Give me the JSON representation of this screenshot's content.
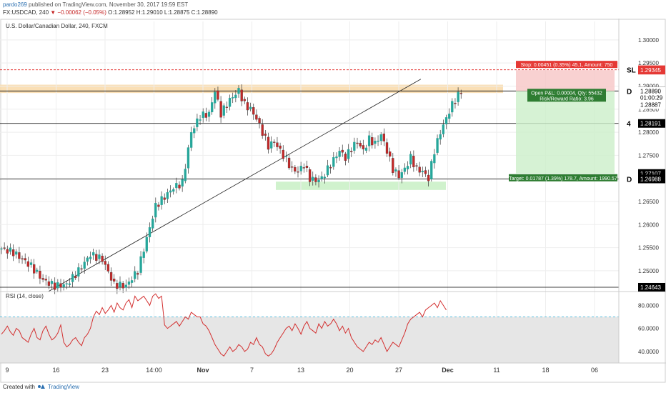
{
  "header": {
    "author": "pardo269",
    "published": "published on TradingView.com, November 30, 2017 19:59 EST",
    "symbol": "FX:USDCAD, 240",
    "change": "▼ −0.00062 (−0.05%)",
    "ohlc": "O:1.28952 H:1.29010 L:1.28875 C:1.28890"
  },
  "footer": {
    "created_with": "Created with",
    "brand": "TradingView"
  },
  "chart_data": [
    {
      "type": "candlestick",
      "title": "U.S. Dollar/Canadian Dollar, 240, FXCM",
      "ylim": [
        1.2455,
        1.304
      ],
      "y_ticks": [
        "1.30000",
        "1.29500",
        "1.29000",
        "1.28500",
        "1.28000",
        "1.27500",
        "1.27000",
        "1.26500",
        "1.26000",
        "1.25500",
        "1.25000"
      ],
      "x_ticks": [
        "9",
        "16",
        "23",
        "14:00",
        "Nov",
        "7",
        "13",
        "20",
        "27",
        "Dec",
        "11",
        "18",
        "06"
      ],
      "price_path": [
        [
          0,
          1.2548
        ],
        [
          4,
          1.254
        ],
        [
          10,
          1.251
        ],
        [
          14,
          1.248
        ],
        [
          18,
          1.2467
        ],
        [
          22,
          1.247
        ],
        [
          26,
          1.25
        ],
        [
          30,
          1.2535
        ],
        [
          34,
          1.2525
        ],
        [
          38,
          1.247
        ],
        [
          42,
          1.2467
        ],
        [
          46,
          1.25
        ],
        [
          49,
          1.257
        ],
        [
          52,
          1.264
        ],
        [
          55,
          1.266
        ],
        [
          58,
          1.268
        ],
        [
          61,
          1.269
        ],
        [
          64,
          1.28
        ],
        [
          67,
          1.2835
        ],
        [
          70,
          1.284
        ],
        [
          72,
          1.289
        ],
        [
          74,
          1.284
        ],
        [
          77,
          1.287
        ],
        [
          80,
          1.289
        ],
        [
          82,
          1.286
        ],
        [
          84,
          1.285
        ],
        [
          86,
          1.283
        ],
        [
          88,
          1.28
        ],
        [
          90,
          1.277
        ],
        [
          92,
          1.278
        ],
        [
          94,
          1.276
        ],
        [
          96,
          1.274
        ],
        [
          98,
          1.272
        ],
        [
          100,
          1.2715
        ],
        [
          102,
          1.273
        ],
        [
          104,
          1.27
        ],
        [
          106,
          1.2695
        ],
        [
          108,
          1.27
        ],
        [
          110,
          1.272
        ],
        [
          112,
          1.274
        ],
        [
          114,
          1.276
        ],
        [
          116,
          1.2745
        ],
        [
          118,
          1.2765
        ],
        [
          120,
          1.278
        ],
        [
          122,
          1.276
        ],
        [
          124,
          1.2785
        ],
        [
          126,
          1.2775
        ],
        [
          128,
          1.2795
        ],
        [
          130,
          1.276
        ],
        [
          132,
          1.272
        ],
        [
          134,
          1.2705
        ],
        [
          136,
          1.272
        ],
        [
          138,
          1.2745
        ],
        [
          140,
          1.272
        ],
        [
          142,
          1.2715
        ],
        [
          144,
          1.27
        ],
        [
          146,
          1.276
        ],
        [
          148,
          1.28
        ],
        [
          150,
          1.283
        ],
        [
          152,
          1.286
        ],
        [
          154,
          1.288
        ],
        [
          155,
          1.2889
        ]
      ],
      "levels": [
        {
          "label": "SL",
          "price": 1.29354,
          "style": "dashed",
          "color": "#e53935"
        },
        {
          "label": "D",
          "price": 1.28894,
          "color": "#000000"
        },
        {
          "label": "4",
          "price": 1.28191,
          "color": "#000000"
        },
        {
          "label": "D",
          "price": 1.26988,
          "color": "#000000"
        },
        {
          "price": 1.24643,
          "color": "#000000"
        }
      ],
      "price_labels": [
        {
          "text": "1.29354",
          "price": 1.29354,
          "bg": "#e53935"
        },
        {
          "text": "1.29345",
          "price": 1.29345,
          "bg": "#e53935"
        },
        {
          "text": "1.28894",
          "price": 1.28894,
          "bg": "#000000"
        },
        {
          "text": "1.28890",
          "price": 1.2889,
          "bg": "#ffffff",
          "fg": "#000000"
        },
        {
          "text": "01:00:29",
          "price": 1.2875,
          "bg": "#ffffff",
          "fg": "#000000"
        },
        {
          "text": "1.28887",
          "price": 1.286,
          "bg": "#ffffff",
          "fg": "#000000"
        },
        {
          "text": "1.28191",
          "price": 1.28191,
          "bg": "#000000"
        },
        {
          "text": "1.27107",
          "price": 1.27107,
          "bg": "#000000"
        },
        {
          "text": "1.26988",
          "price": 1.26988,
          "bg": "#000000"
        },
        {
          "text": "1.24643",
          "price": 1.24643,
          "bg": "#000000"
        }
      ],
      "zones": [
        {
          "name": "resistance",
          "from": 1.2885,
          "to": 1.2903,
          "color": "#f9d9a8"
        },
        {
          "name": "support",
          "from": 1.2675,
          "to": 1.2693,
          "color": "#c8f0c4"
        }
      ],
      "trendline": {
        "from": [
          0.078,
          1.2455
        ],
        "to": [
          0.68,
          1.2915
        ]
      },
      "position": {
        "stop_text": "Stop: 0.00451 (0.35%) 45.1, Amount: 750",
        "pnl_text": "Open P&L: 0.00004, Qty: 55432",
        "rr_text": "Risk/Reward Ratio: 3.96",
        "target_text": "Target: 0.01787 (1.39%) 178.7, Amount: 1990.57",
        "entry": 1.28894,
        "stop": 1.29345,
        "target": 1.27107
      }
    },
    {
      "type": "line",
      "title": "RSI (14, close)",
      "ylim": [
        30,
        92
      ],
      "y_ticks": [
        "80.0000",
        "60.0000",
        "40.0000"
      ],
      "bands": [
        70,
        30
      ],
      "values": [
        55,
        58,
        62,
        57,
        54,
        60,
        58,
        52,
        50,
        48,
        55,
        60,
        52,
        50,
        58,
        62,
        55,
        50,
        52,
        56,
        63,
        48,
        44,
        46,
        50,
        52,
        48,
        45,
        52,
        55,
        60,
        70,
        75,
        72,
        78,
        73,
        76,
        80,
        74,
        82,
        78,
        76,
        82,
        85,
        78,
        88,
        84,
        86,
        88,
        84,
        80,
        88,
        90,
        86,
        88,
        63,
        60,
        62,
        64,
        66,
        62,
        66,
        70,
        68,
        74,
        72,
        70,
        70,
        64,
        62,
        58,
        52,
        46,
        42,
        38,
        36,
        40,
        44,
        40,
        42,
        46,
        44,
        40,
        42,
        48,
        46,
        52,
        46,
        44,
        38,
        36,
        38,
        42,
        48,
        52,
        56,
        60,
        62,
        58,
        64,
        60,
        55,
        62,
        66,
        60,
        58,
        56,
        64,
        60,
        66,
        62,
        64,
        68,
        64,
        58,
        62,
        56,
        60,
        52,
        48,
        44,
        42,
        40,
        44,
        48,
        46,
        50,
        48,
        52,
        46,
        40,
        44,
        48,
        46,
        44,
        50,
        56,
        64,
        68,
        70,
        72,
        74,
        70,
        76,
        78,
        80,
        82,
        78,
        84,
        80,
        76
      ]
    }
  ],
  "colors": {
    "up": "#26a69a",
    "down": "#c62828",
    "grid": "#eeeeee",
    "rsi": "#d32f2f"
  }
}
